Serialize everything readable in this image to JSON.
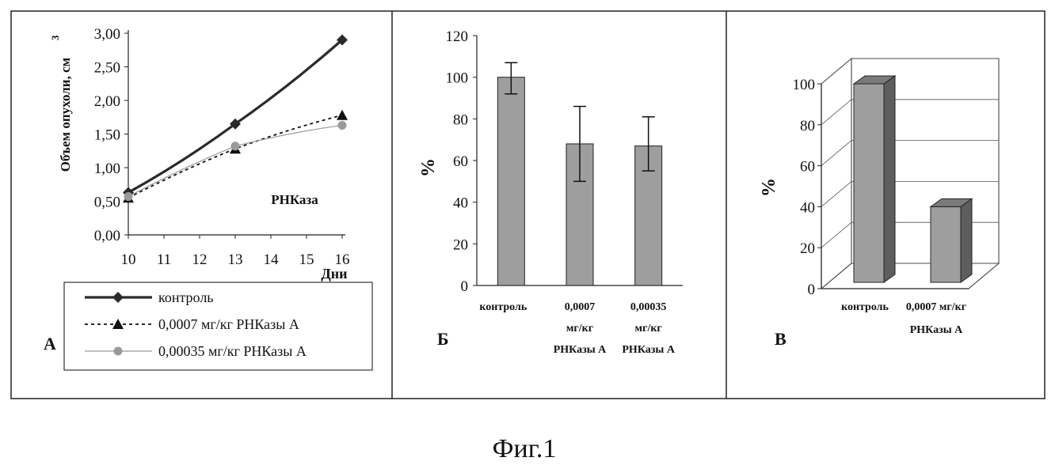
{
  "figure_caption": "Фиг.1",
  "chart_data": [
    {
      "panel_label": "А",
      "type": "line",
      "ylabel": "Объем опухоли, см",
      "ylabel_superscript": "3",
      "xlabel": "Дни",
      "annotation": "РНКаза",
      "xlim": [
        10,
        16
      ],
      "ylim": [
        0,
        3
      ],
      "x_ticks": [
        "10",
        "11",
        "12",
        "13",
        "14",
        "15",
        "16"
      ],
      "y_ticks": [
        "0,00",
        "0,50",
        "1,00",
        "1,50",
        "2,00",
        "2,50",
        "3,00"
      ],
      "x": [
        10,
        13,
        16
      ],
      "series": [
        {
          "name": "контроль",
          "values": [
            0.63,
            1.65,
            2.9
          ],
          "color": "#2a2a2a",
          "marker": "diamond"
        },
        {
          "name": "0,0007 мг/кг РНКазы А",
          "values": [
            0.55,
            1.28,
            1.78
          ],
          "color": "#111111",
          "marker": "triangle"
        },
        {
          "name": "0,00035 мг/кг РНКазы А",
          "values": [
            0.57,
            1.32,
            1.63
          ],
          "color": "#9a9a9a",
          "marker": "circle"
        }
      ],
      "legend_position": "bottom"
    },
    {
      "panel_label": "Б",
      "type": "bar",
      "ylabel": "%",
      "ylim": [
        0,
        120
      ],
      "y_ticks": [
        "0",
        "20",
        "40",
        "60",
        "80",
        "100",
        "120"
      ],
      "categories": [
        [
          "контроль"
        ],
        [
          "0,0007",
          "мг/кг",
          "РНКазы А"
        ],
        [
          "0,00035",
          "мг/кг",
          "РНКазы А"
        ]
      ],
      "values": [
        100,
        68,
        67
      ],
      "error_low": [
        92,
        50,
        55
      ],
      "error_high": [
        107,
        86,
        81
      ],
      "bar_color": "#9e9e9e"
    },
    {
      "panel_label": "В",
      "type": "bar",
      "ylabel": "%",
      "ylim": [
        0,
        100
      ],
      "y_ticks": [
        "0",
        "20",
        "40",
        "60",
        "80",
        "100"
      ],
      "categories": [
        [
          "контроль"
        ],
        [
          "0,0007 мг/кг",
          "РНКазы А"
        ]
      ],
      "values": [
        100,
        40
      ],
      "bar_color": "#9e9e9e",
      "style": "3d"
    }
  ]
}
